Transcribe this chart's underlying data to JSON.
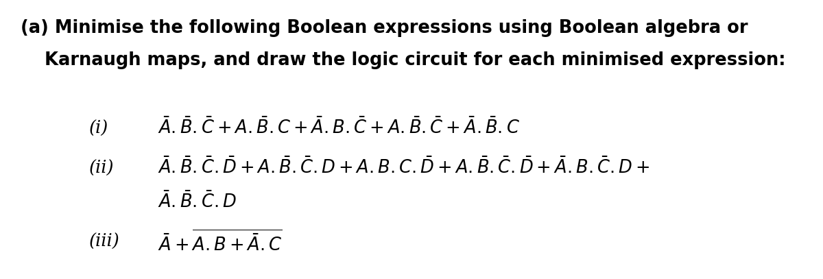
{
  "bg_color": "#ffffff",
  "text_color": "#000000",
  "font_size_header": 18.5,
  "font_size_math": 18.5,
  "line1": "(a) Minimise the following Boolean expressions using Boolean algebra or",
  "line2": "Karnaugh maps, and draw the logic circuit for each minimised expression:",
  "expr_i": "$\\mathit{\\bar{A}.\\bar{B}.\\bar{C}+A.\\bar{B}.C+\\bar{A}.B.\\bar{C}+A.\\bar{B}.\\bar{C}+\\bar{A}.\\bar{B}.C}$",
  "expr_ii_1": "$\\mathit{\\bar{A}.\\bar{B}.\\bar{C}.\\bar{D}+A.\\bar{B}.\\bar{C}.D+A.B.C.\\bar{D}+A.\\bar{B}.\\bar{C}.\\bar{D}+\\bar{A}.B.\\bar{C}.D+}$",
  "expr_ii_2": "$\\mathit{\\bar{A}.\\bar{B}.\\bar{C}.D}$",
  "expr_iii": "$\\mathit{\\bar{A}+\\overline{A.B+\\bar{A}.C}}$"
}
